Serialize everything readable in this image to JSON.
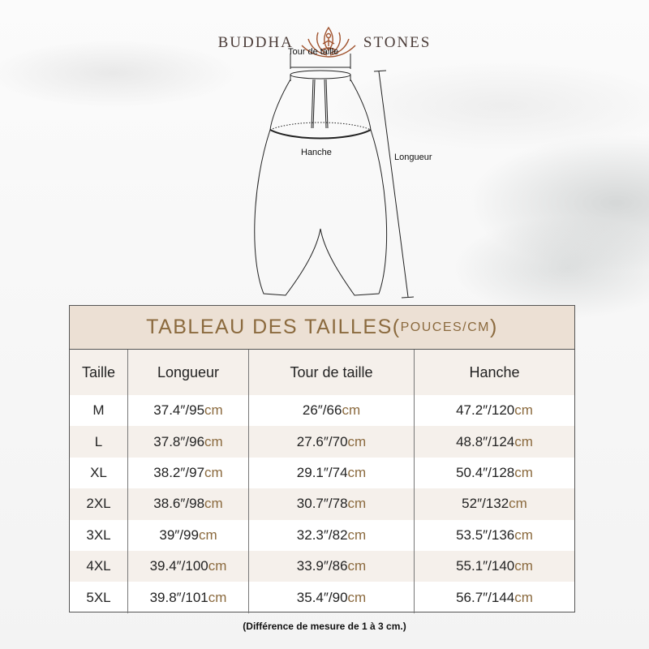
{
  "brand": {
    "left": "BUDDHA",
    "right": "STONES",
    "logo_icon": "lotus-meditation-icon",
    "color": "#a0522d"
  },
  "diagram": {
    "waist_label": "Tour de taille",
    "hip_label": "Hanche",
    "length_label": "Longueur"
  },
  "table": {
    "title": "TABLEAU DES TAILLES(",
    "title_unit": "POUCES/CM",
    "title_end": ")",
    "headers": [
      "Taille",
      "Longueur",
      "Tour de taille",
      "Hanche"
    ],
    "rows": [
      {
        "size": "M",
        "length": "37.4″/95",
        "waist": "26″/66",
        "hip": "47.2″/120"
      },
      {
        "size": "L",
        "length": "37.8″/96",
        "waist": "27.6″/70",
        "hip": "48.8″/124"
      },
      {
        "size": "XL",
        "length": "38.2″/97",
        "waist": "29.1″/74",
        "hip": "50.4″/128"
      },
      {
        "size": "2XL",
        "length": "38.6″/98",
        "waist": "30.7″/78",
        "hip": "52″/132"
      },
      {
        "size": "3XL",
        "length": "39″/99",
        "waist": "32.3″/82",
        "hip": "53.5″/136"
      },
      {
        "size": "4XL",
        "length": "39.4″/100",
        "waist": "33.9″/86",
        "hip": "55.1″/140"
      },
      {
        "size": "5XL",
        "length": "39.8″/101",
        "waist": "35.4″/90",
        "hip": "56.7″/144"
      }
    ],
    "unit": "cm",
    "accent": "#8b6a3e",
    "header_bg": "#ece0d4"
  },
  "note": "(Différence de mesure de 1 à 3 cm.)"
}
